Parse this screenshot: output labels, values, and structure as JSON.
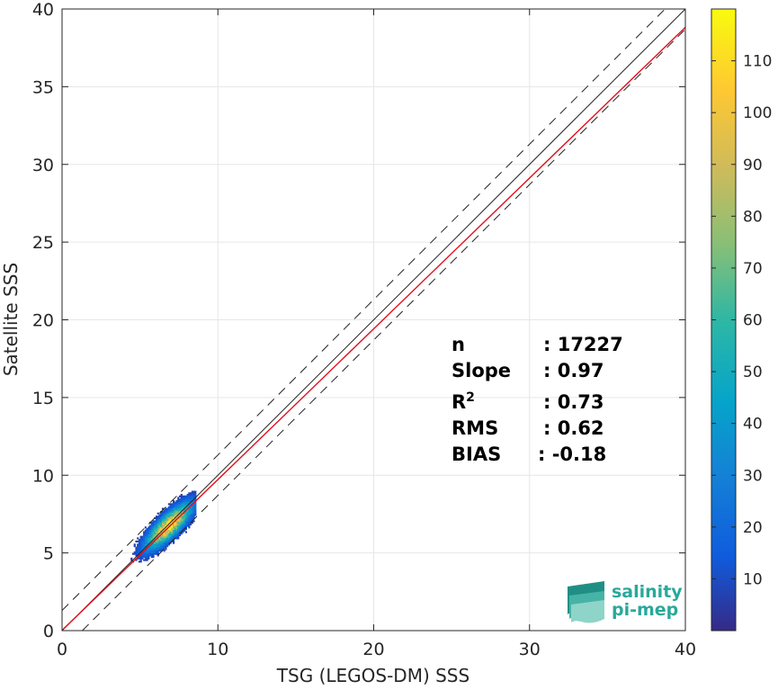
{
  "chart_data": {
    "type": "heatmap",
    "xlabel": "TSG (LEGOS-DM) SSS",
    "ylabel": "Satellite SSS",
    "xlim": [
      0,
      40
    ],
    "ylim": [
      0,
      40
    ],
    "xticks": [
      0,
      10,
      20,
      30,
      40
    ],
    "yticks": [
      0,
      5,
      10,
      15,
      20,
      25,
      30,
      35,
      40
    ],
    "grid": true,
    "colorbar": {
      "colormap": "parula",
      "range": [
        0,
        120
      ],
      "ticks": [
        10,
        20,
        30,
        40,
        50,
        60,
        70,
        80,
        90,
        100,
        110
      ]
    },
    "density_cloud": {
      "center": [
        6.8,
        6.7
      ],
      "x_range": [
        2.9,
        8.5
      ],
      "y_range": [
        2.3,
        9.3
      ],
      "peak_count": 118
    },
    "reference_lines": [
      {
        "name": "one-to-one",
        "slope": 1,
        "intercept": 0,
        "style": "solid",
        "color": "#222222"
      },
      {
        "name": "regression",
        "slope": 0.97,
        "intercept": 0.02,
        "style": "solid",
        "color": "#e0101c"
      },
      {
        "name": "upper-bound",
        "slope": 1,
        "intercept": 1.3,
        "style": "dashed",
        "color": "#222222"
      },
      {
        "name": "lower-bound",
        "slope": 1,
        "intercept": -1.3,
        "style": "dashed",
        "color": "#222222"
      }
    ],
    "stats": [
      {
        "label": "n",
        "value": ": 17227"
      },
      {
        "label": "Slope",
        "value": ": 0.97"
      },
      {
        "label": "R2",
        "value": ": 0.73"
      },
      {
        "label": "RMS",
        "value": ": 0.62"
      },
      {
        "label": "BIAS",
        "value": ": -0.18"
      }
    ]
  },
  "logo": {
    "line1": "salinity",
    "line2": "pi-mep",
    "color": "#2aa89a"
  }
}
